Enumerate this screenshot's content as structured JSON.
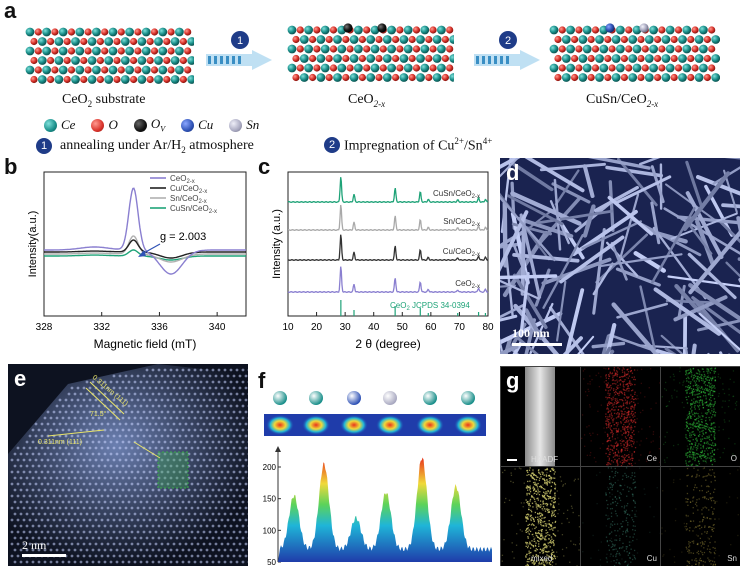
{
  "panels": {
    "a": "a",
    "b": "b",
    "c": "c",
    "d": "d",
    "e": "e",
    "f": "f",
    "g": "g"
  },
  "panel_a": {
    "structure_labels": [
      "CeO",
      "CeO",
      "CuSn/CeO"
    ],
    "structure_subs": [
      "2",
      "2-x",
      "2-x"
    ],
    "substrate_suffix": " substrate",
    "step_numbers": [
      "1",
      "2"
    ],
    "legend": [
      {
        "label": "Ce",
        "color": "#1a8f8a"
      },
      {
        "label": "O",
        "color": "#d9332b"
      },
      {
        "label": "O",
        "sub": "V",
        "color": "#222222"
      },
      {
        "label": "Cu",
        "color": "#2f52b5"
      },
      {
        "label": "Sn",
        "color": "#a8a8c0"
      }
    ],
    "step1": "annealing under Ar/H",
    "step1_sub": "2",
    "step1_tail": " atmosphere",
    "step2": "Impregnation of Cu",
    "step2_sup1": "2+",
    "step2_mid": "/Sn",
    "step2_sup2": "4+"
  },
  "chart_data": [
    {
      "panel": "b",
      "type": "line",
      "xlabel": "Magnetic field (mT)",
      "ylabel": "Intensity(a.u.)",
      "xlim": [
        328,
        342
      ],
      "xticks": [
        "328",
        "332",
        "336",
        "340"
      ],
      "annotation": "g = 2.003",
      "series": [
        {
          "name": "CeO",
          "name_sub": "2-x",
          "color": "#8a7fd0"
        },
        {
          "name": "Cu/CeO",
          "name_sub": "2-x",
          "color": "#222222"
        },
        {
          "name": "Sn/CeO",
          "name_sub": "2-x",
          "color": "#b0b0b0"
        },
        {
          "name": "CuSn/CeO",
          "name_sub": "2-x",
          "color": "#1fa378"
        }
      ]
    },
    {
      "panel": "c",
      "type": "line",
      "xlabel": "2 θ (degree)",
      "ylabel": "Intensity (a.u.)",
      "xlim": [
        10,
        80
      ],
      "xticks": [
        "10",
        "20",
        "30",
        "40",
        "50",
        "60",
        "70",
        "80"
      ],
      "series": [
        {
          "name": "CuSn/CeO",
          "name_sub": "2-x",
          "color": "#1fa378"
        },
        {
          "name": "Sn/CeO",
          "name_sub": "2-x",
          "color": "#a9a9a9"
        },
        {
          "name": "Cu/CeO",
          "name_sub": "2-x",
          "color": "#333333"
        },
        {
          "name": "CeO",
          "name_sub": "2-x",
          "color": "#8a7fd0"
        }
      ],
      "reference": "CeO",
      "reference_sub": "2",
      "reference_tail": " JCPDS 34-0394",
      "reference_peaks": [
        28.5,
        33.1,
        47.5,
        56.3,
        59.1,
        69.4,
        76.7,
        79.1
      ]
    },
    {
      "panel": "f",
      "type": "area",
      "yticks": [
        "50",
        "100",
        "150",
        "200"
      ],
      "ylim": [
        50,
        230
      ]
    }
  ],
  "panel_d": {
    "scalebar": "100 nm"
  },
  "panel_e": {
    "scalebar": "2 nm",
    "annotations": [
      "0.311nm (111)",
      "0.311nm (111)",
      "71.5°"
    ]
  },
  "panel_g": {
    "cells": [
      "HAADF",
      "Ce",
      "O",
      "mixed",
      "Cu",
      "Sn"
    ]
  }
}
